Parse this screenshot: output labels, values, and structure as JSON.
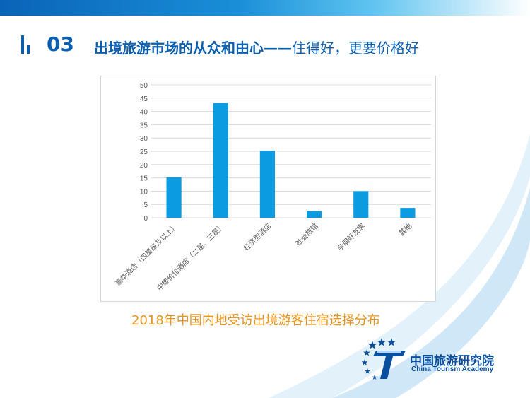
{
  "header": {
    "section_number": "03",
    "title_strong": "出境旅游市场的从众和由心——",
    "title_rest": "住得好，更要价格好"
  },
  "chart_data": {
    "type": "bar",
    "title": "2018年中国内地受访出境游客住宿选择分布",
    "categories": [
      "豪华酒店（四星级及以上）",
      "中等价位酒店（二星、三星）",
      "经济型酒店",
      "社会旅馆",
      "亲朋好友家",
      "其他"
    ],
    "values": [
      15.2,
      43.2,
      25.2,
      2.5,
      10.0,
      3.7
    ],
    "ylim": [
      0,
      50
    ],
    "yticks": [
      0,
      5,
      10,
      15,
      20,
      25,
      30,
      35,
      40,
      45,
      50
    ],
    "xlabel": "",
    "ylabel": "",
    "grid": true,
    "bar_color": "#0b9be0"
  },
  "logo": {
    "name_cn": "中国旅游研究院",
    "name_en": "China Tourism Academy"
  },
  "colors": {
    "brand_blue": "#0b5fb0",
    "caption_orange": "#e8951e"
  }
}
